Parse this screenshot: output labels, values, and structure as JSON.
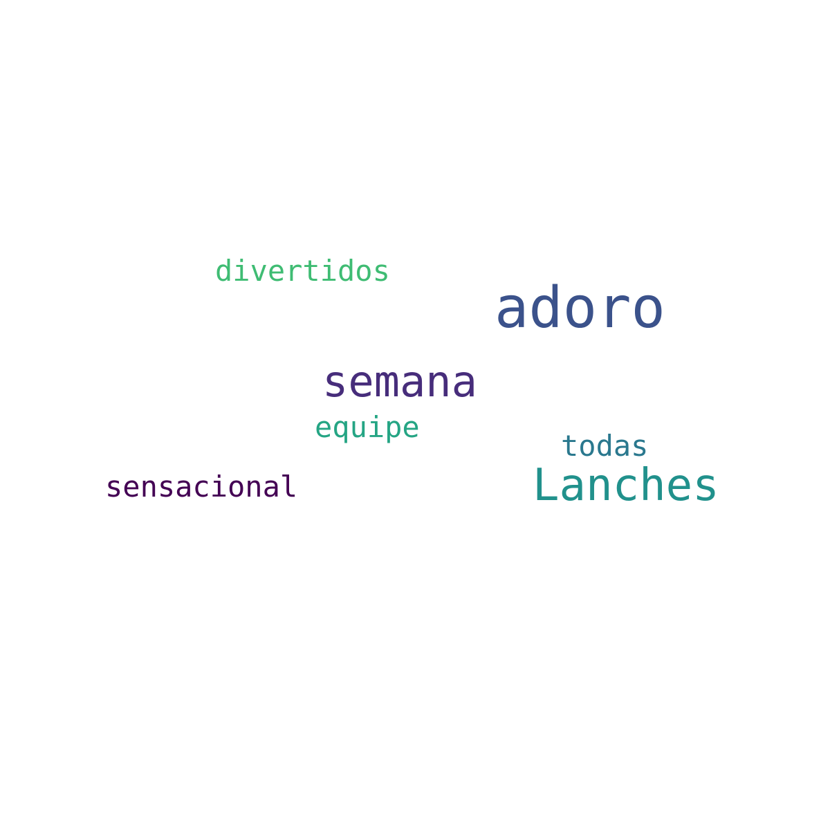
{
  "words": [
    {
      "text": "divertidos",
      "color": "#3fbc73"
    },
    {
      "text": "adoro",
      "color": "#3b528b"
    },
    {
      "text": "semana",
      "color": "#472d7b"
    },
    {
      "text": "equipe",
      "color": "#25a584"
    },
    {
      "text": "todas",
      "color": "#2a788e"
    },
    {
      "text": "Lanches",
      "color": "#21918c"
    },
    {
      "text": "sensacional",
      "color": "#440154"
    }
  ]
}
